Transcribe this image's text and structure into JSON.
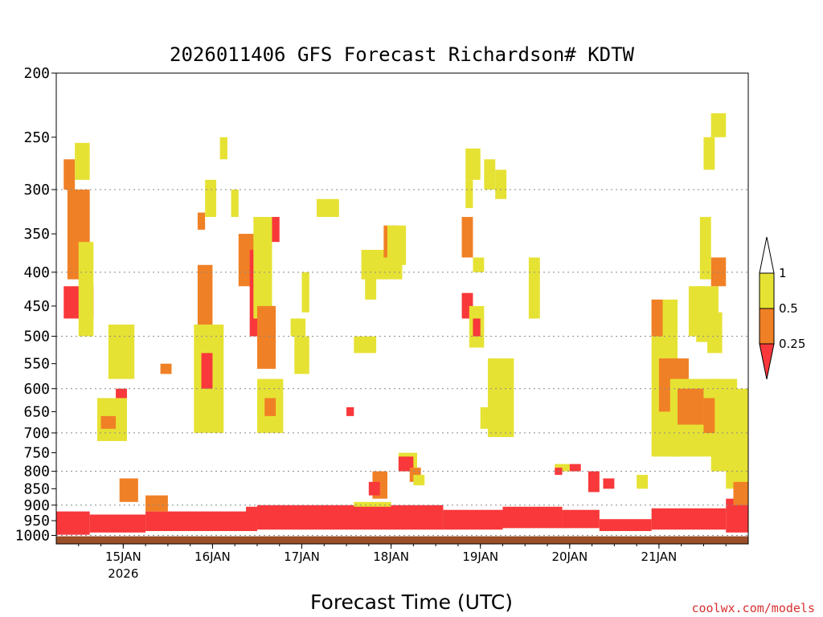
{
  "chart_data": {
    "type": "heatmap",
    "title": "2026011406 GFS Forecast Richardson# KDTW",
    "xlabel": "Forecast Time (UTC)",
    "ylabel": "",
    "watermark": "coolwx.com/models",
    "y_axis": {
      "scale": "log-pressure",
      "reversed": true,
      "range": [
        1030,
        200
      ],
      "ticks": [
        "200",
        "250",
        "300",
        "350",
        "400",
        "450",
        "500",
        "550",
        "600",
        "650",
        "700",
        "750",
        "800",
        "850",
        "900",
        "950",
        "1000"
      ],
      "dotted_grid_at": [
        300,
        400,
        500,
        600,
        700,
        800,
        900,
        1000
      ]
    },
    "x_axis": {
      "start": "14JAN 06",
      "end": "21JAN 18",
      "ticks": [
        {
          "label": "15JAN",
          "sublabel": "2026"
        },
        {
          "label": "16JAN"
        },
        {
          "label": "17JAN"
        },
        {
          "label": "18JAN"
        },
        {
          "label": "19JAN"
        },
        {
          "label": "20JAN"
        },
        {
          "label": "21JAN"
        }
      ]
    },
    "legend": {
      "placement": "right",
      "labels": [
        "1",
        "0.5",
        "0.25"
      ],
      "bins": [
        {
          "range": "> 1",
          "color": "#ffffff"
        },
        {
          "range": "0.5 - 1",
          "color": "#e6e234"
        },
        {
          "range": "0.25 - 0.5",
          "color": "#f08025"
        },
        {
          "range": "< 0.25",
          "color": "#f8383a"
        }
      ]
    },
    "colors": {
      "low": "#f8383a",
      "mid": "#f08025",
      "high": "#e6e234",
      "ground": "#9a4f28"
    },
    "regions": [
      {
        "h0": 0,
        "h1": 9,
        "p0": 920,
        "p1": 1000,
        "c": "low"
      },
      {
        "h0": 9,
        "h1": 24,
        "p0": 930,
        "p1": 990,
        "c": "low"
      },
      {
        "h0": 24,
        "h1": 54,
        "p0": 920,
        "p1": 985,
        "c": "low"
      },
      {
        "h0": 24,
        "h1": 30,
        "p0": 870,
        "p1": 920,
        "c": "mid"
      },
      {
        "h0": 51,
        "h1": 54,
        "p0": 905,
        "p1": 930,
        "c": "low"
      },
      {
        "h0": 54,
        "h1": 104,
        "p0": 900,
        "p1": 980,
        "c": "low"
      },
      {
        "h0": 80,
        "h1": 90,
        "p0": 890,
        "p1": 905,
        "c": "high"
      },
      {
        "h0": 104,
        "h1": 120,
        "p0": 915,
        "p1": 980,
        "c": "low"
      },
      {
        "h0": 120,
        "h1": 136,
        "p0": 905,
        "p1": 975,
        "c": "low"
      },
      {
        "h0": 136,
        "h1": 146,
        "p0": 915,
        "p1": 975,
        "c": "low"
      },
      {
        "h0": 146,
        "h1": 160,
        "p0": 945,
        "p1": 985,
        "c": "low"
      },
      {
        "h0": 160,
        "h1": 180,
        "p0": 910,
        "p1": 980,
        "c": "low"
      },
      {
        "h0": 180,
        "h1": 186,
        "p0": 880,
        "p1": 990,
        "c": "low"
      },
      {
        "h0": 2,
        "h1": 10,
        "p0": 420,
        "p1": 470,
        "c": "low"
      },
      {
        "h0": 2,
        "h1": 5,
        "p0": 270,
        "p1": 300,
        "c": "mid"
      },
      {
        "h0": 5,
        "h1": 9,
        "p0": 255,
        "p1": 290,
        "c": "high"
      },
      {
        "h0": 3,
        "h1": 9,
        "p0": 300,
        "p1": 410,
        "c": "mid"
      },
      {
        "h0": 6,
        "h1": 10,
        "p0": 360,
        "p1": 500,
        "c": "high"
      },
      {
        "h0": 14,
        "h1": 21,
        "p0": 480,
        "p1": 580,
        "c": "high"
      },
      {
        "h0": 16,
        "h1": 19,
        "p0": 600,
        "p1": 620,
        "c": "low"
      },
      {
        "h0": 11,
        "h1": 19,
        "p0": 620,
        "p1": 720,
        "c": "high"
      },
      {
        "h0": 12,
        "h1": 16,
        "p0": 660,
        "p1": 690,
        "c": "mid"
      },
      {
        "h0": 17,
        "h1": 22,
        "p0": 820,
        "p1": 890,
        "c": "mid"
      },
      {
        "h0": 28,
        "h1": 31,
        "p0": 550,
        "p1": 570,
        "c": "mid"
      },
      {
        "h0": 38,
        "h1": 40,
        "p0": 325,
        "p1": 345,
        "c": "mid"
      },
      {
        "h0": 40,
        "h1": 43,
        "p0": 290,
        "p1": 330,
        "c": "high"
      },
      {
        "h0": 38,
        "h1": 42,
        "p0": 390,
        "p1": 580,
        "c": "mid"
      },
      {
        "h0": 37,
        "h1": 45,
        "p0": 480,
        "p1": 700,
        "c": "high"
      },
      {
        "h0": 39,
        "h1": 42,
        "p0": 530,
        "p1": 600,
        "c": "low"
      },
      {
        "h0": 44,
        "h1": 46,
        "p0": 250,
        "p1": 270,
        "c": "high"
      },
      {
        "h0": 47,
        "h1": 49,
        "p0": 300,
        "p1": 330,
        "c": "high"
      },
      {
        "h0": 49,
        "h1": 55,
        "p0": 350,
        "p1": 420,
        "c": "mid"
      },
      {
        "h0": 52,
        "h1": 56,
        "p0": 370,
        "p1": 500,
        "c": "low"
      },
      {
        "h0": 53,
        "h1": 58,
        "p0": 330,
        "p1": 470,
        "c": "high"
      },
      {
        "h0": 54,
        "h1": 59,
        "p0": 450,
        "p1": 560,
        "c": "mid"
      },
      {
        "h0": 54,
        "h1": 61,
        "p0": 580,
        "p1": 700,
        "c": "high"
      },
      {
        "h0": 56,
        "h1": 59,
        "p0": 620,
        "p1": 660,
        "c": "mid"
      },
      {
        "h0": 58,
        "h1": 60,
        "p0": 330,
        "p1": 360,
        "c": "low"
      },
      {
        "h0": 64,
        "h1": 68,
        "p0": 500,
        "p1": 570,
        "c": "high"
      },
      {
        "h0": 63,
        "h1": 67,
        "p0": 470,
        "p1": 500,
        "c": "high"
      },
      {
        "h0": 66,
        "h1": 68,
        "p0": 400,
        "p1": 460,
        "c": "high"
      },
      {
        "h0": 70,
        "h1": 76,
        "p0": 310,
        "p1": 330,
        "c": "high"
      },
      {
        "h0": 78,
        "h1": 80,
        "p0": 640,
        "p1": 660,
        "c": "low"
      },
      {
        "h0": 82,
        "h1": 93,
        "p0": 370,
        "p1": 410,
        "c": "high"
      },
      {
        "h0": 83,
        "h1": 86,
        "p0": 400,
        "p1": 440,
        "c": "high"
      },
      {
        "h0": 80,
        "h1": 86,
        "p0": 500,
        "p1": 530,
        "c": "high"
      },
      {
        "h0": 88,
        "h1": 92,
        "p0": 340,
        "p1": 380,
        "c": "mid"
      },
      {
        "h0": 89,
        "h1": 94,
        "p0": 340,
        "p1": 390,
        "c": "high"
      },
      {
        "h0": 85,
        "h1": 89,
        "p0": 800,
        "p1": 880,
        "c": "mid"
      },
      {
        "h0": 84,
        "h1": 87,
        "p0": 830,
        "p1": 870,
        "c": "low"
      },
      {
        "h0": 92,
        "h1": 97,
        "p0": 750,
        "p1": 790,
        "c": "high"
      },
      {
        "h0": 92,
        "h1": 96,
        "p0": 760,
        "p1": 800,
        "c": "low"
      },
      {
        "h0": 95,
        "h1": 98,
        "p0": 790,
        "p1": 830,
        "c": "mid"
      },
      {
        "h0": 96,
        "h1": 99,
        "p0": 810,
        "p1": 840,
        "c": "high"
      },
      {
        "h0": 110,
        "h1": 114,
        "p0": 260,
        "p1": 290,
        "c": "high"
      },
      {
        "h0": 110,
        "h1": 112,
        "p0": 290,
        "p1": 320,
        "c": "high"
      },
      {
        "h0": 109,
        "h1": 112,
        "p0": 330,
        "p1": 380,
        "c": "mid"
      },
      {
        "h0": 112,
        "h1": 115,
        "p0": 380,
        "p1": 400,
        "c": "high"
      },
      {
        "h0": 109,
        "h1": 112,
        "p0": 430,
        "p1": 470,
        "c": "low"
      },
      {
        "h0": 111,
        "h1": 115,
        "p0": 450,
        "p1": 520,
        "c": "high"
      },
      {
        "h0": 112,
        "h1": 114,
        "p0": 470,
        "p1": 500,
        "c": "low"
      },
      {
        "h0": 115,
        "h1": 118,
        "p0": 270,
        "p1": 300,
        "c": "high"
      },
      {
        "h0": 116,
        "h1": 123,
        "p0": 540,
        "p1": 710,
        "c": "high"
      },
      {
        "h0": 116,
        "h1": 120,
        "p0": 620,
        "p1": 650,
        "c": "high"
      },
      {
        "h0": 118,
        "h1": 121,
        "p0": 280,
        "p1": 310,
        "c": "high"
      },
      {
        "h0": 114,
        "h1": 117,
        "p0": 640,
        "p1": 690,
        "c": "high"
      },
      {
        "h0": 127,
        "h1": 130,
        "p0": 380,
        "p1": 470,
        "c": "high"
      },
      {
        "h0": 134,
        "h1": 138,
        "p0": 780,
        "p1": 800,
        "c": "high"
      },
      {
        "h0": 134,
        "h1": 136,
        "p0": 790,
        "p1": 810,
        "c": "low"
      },
      {
        "h0": 138,
        "h1": 141,
        "p0": 780,
        "p1": 800,
        "c": "low"
      },
      {
        "h0": 143,
        "h1": 146,
        "p0": 800,
        "p1": 860,
        "c": "low"
      },
      {
        "h0": 147,
        "h1": 150,
        "p0": 820,
        "p1": 850,
        "c": "low"
      },
      {
        "h0": 156,
        "h1": 159,
        "p0": 810,
        "p1": 850,
        "c": "high"
      },
      {
        "h0": 160,
        "h1": 167,
        "p0": 440,
        "p1": 760,
        "c": "high"
      },
      {
        "h0": 160,
        "h1": 163,
        "p0": 440,
        "p1": 500,
        "c": "mid"
      },
      {
        "h0": 162,
        "h1": 170,
        "p0": 540,
        "p1": 650,
        "c": "mid"
      },
      {
        "h0": 165,
        "h1": 178,
        "p0": 580,
        "p1": 760,
        "c": "high"
      },
      {
        "h0": 167,
        "h1": 174,
        "p0": 600,
        "p1": 680,
        "c": "mid"
      },
      {
        "h0": 170,
        "h1": 174,
        "p0": 420,
        "p1": 500,
        "c": "high"
      },
      {
        "h0": 172,
        "h1": 178,
        "p0": 420,
        "p1": 510,
        "c": "high"
      },
      {
        "h0": 175,
        "h1": 179,
        "p0": 460,
        "p1": 530,
        "c": "high"
      },
      {
        "h0": 176,
        "h1": 183,
        "p0": 580,
        "p1": 800,
        "c": "high"
      },
      {
        "h0": 174,
        "h1": 177,
        "p0": 620,
        "p1": 700,
        "c": "mid"
      },
      {
        "h0": 176,
        "h1": 180,
        "p0": 380,
        "p1": 420,
        "c": "mid"
      },
      {
        "h0": 173,
        "h1": 176,
        "p0": 330,
        "p1": 410,
        "c": "high"
      },
      {
        "h0": 174,
        "h1": 177,
        "p0": 250,
        "p1": 280,
        "c": "high"
      },
      {
        "h0": 176,
        "h1": 180,
        "p0": 230,
        "p1": 250,
        "c": "high"
      },
      {
        "h0": 180,
        "h1": 186,
        "p0": 600,
        "p1": 850,
        "c": "high"
      },
      {
        "h0": 182,
        "h1": 186,
        "p0": 830,
        "p1": 900,
        "c": "mid"
      }
    ]
  }
}
